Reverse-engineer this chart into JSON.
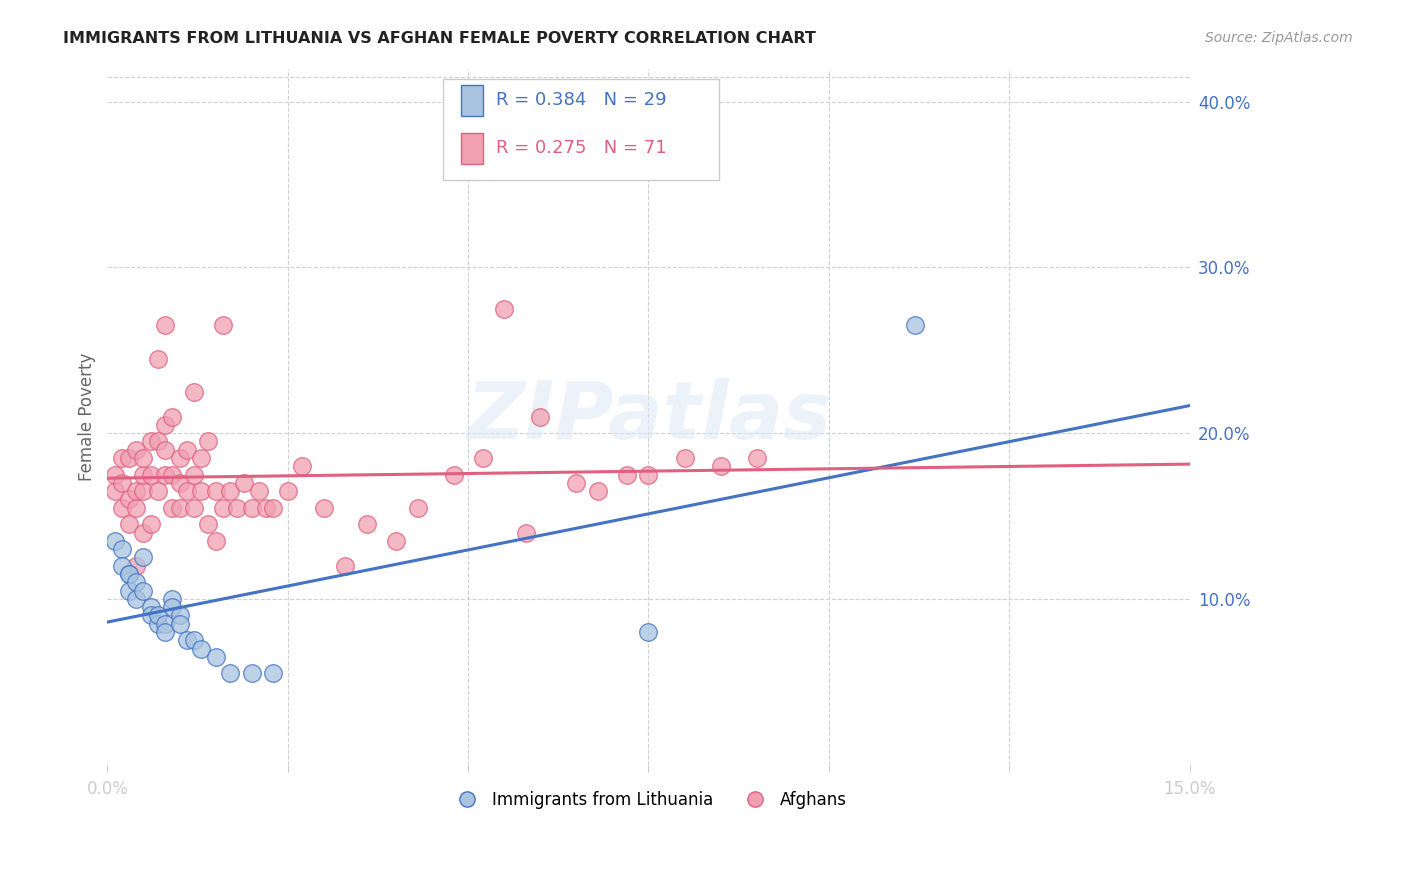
{
  "title": "IMMIGRANTS FROM LITHUANIA VS AFGHAN FEMALE POVERTY CORRELATION CHART",
  "source": "Source: ZipAtlas.com",
  "ylabel": "Female Poverty",
  "xlim": [
    0.0,
    0.15
  ],
  "ylim": [
    0.0,
    0.42
  ],
  "yticks": [
    0.0,
    0.1,
    0.2,
    0.3,
    0.4
  ],
  "ytick_labels": [
    "",
    "10.0%",
    "20.0%",
    "30.0%",
    "40.0%"
  ],
  "xticks": [
    0.0,
    0.025,
    0.05,
    0.075,
    0.1,
    0.125,
    0.15
  ],
  "xtick_labels": [
    "0.0%",
    "",
    "",
    "",
    "",
    "",
    "15.0%"
  ],
  "blue_R": 0.384,
  "blue_N": 29,
  "pink_R": 0.275,
  "pink_N": 71,
  "blue_color": "#a8c4e0",
  "pink_color": "#f0a0b0",
  "blue_line_color": "#4472c4",
  "pink_line_color": "#e06080",
  "legend_blue_label": "Immigrants from Lithuania",
  "legend_pink_label": "Afghans",
  "blue_x": [
    0.001,
    0.002,
    0.002,
    0.003,
    0.003,
    0.003,
    0.004,
    0.004,
    0.005,
    0.005,
    0.006,
    0.006,
    0.007,
    0.007,
    0.008,
    0.008,
    0.009,
    0.009,
    0.01,
    0.01,
    0.011,
    0.012,
    0.013,
    0.015,
    0.017,
    0.02,
    0.023,
    0.075,
    0.112
  ],
  "blue_y": [
    0.135,
    0.13,
    0.12,
    0.115,
    0.115,
    0.105,
    0.11,
    0.1,
    0.125,
    0.105,
    0.095,
    0.09,
    0.085,
    0.09,
    0.085,
    0.08,
    0.1,
    0.095,
    0.09,
    0.085,
    0.075,
    0.075,
    0.07,
    0.065,
    0.055,
    0.055,
    0.055,
    0.08,
    0.265
  ],
  "pink_x": [
    0.001,
    0.001,
    0.002,
    0.002,
    0.002,
    0.003,
    0.003,
    0.003,
    0.004,
    0.004,
    0.004,
    0.004,
    0.005,
    0.005,
    0.005,
    0.005,
    0.006,
    0.006,
    0.006,
    0.007,
    0.007,
    0.007,
    0.008,
    0.008,
    0.008,
    0.008,
    0.009,
    0.009,
    0.009,
    0.01,
    0.01,
    0.01,
    0.011,
    0.011,
    0.012,
    0.012,
    0.012,
    0.013,
    0.013,
    0.014,
    0.014,
    0.015,
    0.015,
    0.016,
    0.016,
    0.017,
    0.018,
    0.019,
    0.02,
    0.021,
    0.022,
    0.023,
    0.025,
    0.027,
    0.03,
    0.033,
    0.036,
    0.04,
    0.043,
    0.048,
    0.052,
    0.055,
    0.058,
    0.06,
    0.065,
    0.068,
    0.072,
    0.075,
    0.08,
    0.085,
    0.09
  ],
  "pink_y": [
    0.165,
    0.175,
    0.155,
    0.17,
    0.185,
    0.145,
    0.16,
    0.185,
    0.12,
    0.155,
    0.165,
    0.19,
    0.14,
    0.165,
    0.175,
    0.185,
    0.145,
    0.175,
    0.195,
    0.165,
    0.195,
    0.245,
    0.175,
    0.19,
    0.205,
    0.265,
    0.155,
    0.175,
    0.21,
    0.155,
    0.17,
    0.185,
    0.165,
    0.19,
    0.155,
    0.175,
    0.225,
    0.165,
    0.185,
    0.145,
    0.195,
    0.135,
    0.165,
    0.155,
    0.265,
    0.165,
    0.155,
    0.17,
    0.155,
    0.165,
    0.155,
    0.155,
    0.165,
    0.18,
    0.155,
    0.12,
    0.145,
    0.135,
    0.155,
    0.175,
    0.185,
    0.275,
    0.14,
    0.21,
    0.17,
    0.165,
    0.175,
    0.175,
    0.185,
    0.18,
    0.185
  ]
}
